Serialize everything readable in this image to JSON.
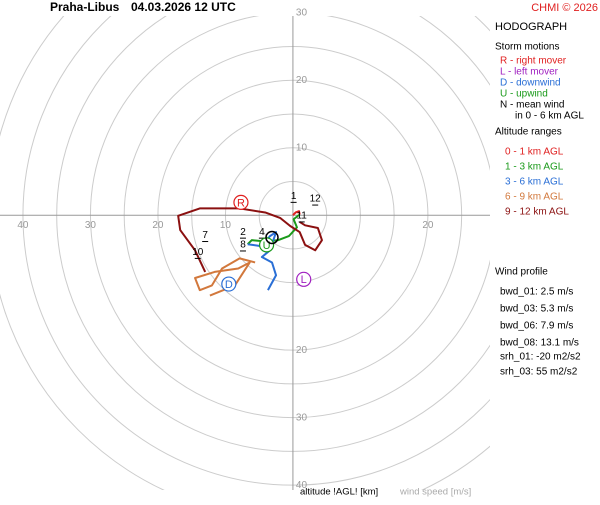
{
  "chart_data": {
    "type": "hodograph",
    "station": "Praha-Libus",
    "time": "04.03.2026 12 UTC",
    "copyright": "CHMI © 2026",
    "title": "HODOGRAPH",
    "x_axis_label": "altitude !AGL! [km]",
    "wind_label": "wind speed [m/s]",
    "xlim": [
      -43.4,
      29.2
    ],
    "ylim": [
      -40.7,
      29.5
    ],
    "rticks": [
      5,
      10,
      15,
      20,
      25,
      30,
      35,
      40,
      45
    ],
    "xticks": [
      {
        "value": -40,
        "label": "40"
      },
      {
        "value": -30,
        "label": "30"
      },
      {
        "value": -20,
        "label": "20"
      },
      {
        "value": -10,
        "label": "10"
      },
      20
    ],
    "yticks": [
      10,
      20,
      30,
      {
        "value": -10,
        "label": "10"
      },
      {
        "value": -20,
        "label": "20"
      },
      {
        "value": -30,
        "label": "30"
      },
      {
        "value": -40,
        "label": "40"
      }
    ],
    "storm_motions_title": "Storm motions",
    "storm_motions": [
      {
        "letter": "R",
        "text": "R - right mover",
        "color": "#e02020",
        "u": -7.7,
        "v": 1.9
      },
      {
        "letter": "L",
        "text": "L - left mover",
        "color": "#a020c0",
        "u": 1.6,
        "v": -9.5
      },
      {
        "letter": "D",
        "text": "D - downwind",
        "color": "#2a6fd6",
        "u": -9.5,
        "v": -10.2
      },
      {
        "letter": "U",
        "text": "U - upwind",
        "color": "#1a9a1a",
        "u": -3.9,
        "v": -4.4
      }
    ],
    "mean_wind": {
      "text": "N - mean wind",
      "text2": "in 0 - 6 km AGL",
      "color": "#000000",
      "u": -3.1,
      "v": -3.3
    },
    "altitude_title": "Altitude ranges",
    "traces": [
      {
        "name": "0 - 1 km AGL",
        "color": "#e02020",
        "u": [
          0,
          0.4,
          0.9,
          1.0
        ],
        "v": [
          0,
          0.4,
          0.6,
          0.1
        ]
      },
      {
        "name": "1 - 3 km AGL",
        "color": "#1a9a1a",
        "u": [
          1.0,
          0.1,
          0.6,
          -0.6,
          -2.2,
          -4.0,
          -6.1,
          -6.7
        ],
        "v": [
          0.1,
          -0.6,
          -1.8,
          -3.1,
          -3.7,
          -3.9,
          -3.7,
          -4.3
        ]
      },
      {
        "name": "3 - 6 km AGL",
        "color": "#2a6fd6",
        "u": [
          -6.7,
          -4.6,
          -3.4,
          -2.5,
          -3.4,
          -4.6,
          -3.1,
          -2.5,
          -3.7
        ],
        "v": [
          -4.3,
          -4.6,
          -3.1,
          -2.5,
          -5.2,
          -6.2,
          -7.0,
          -8.9,
          -11.1
        ]
      },
      {
        "name": "6 - 9 km AGL",
        "color": "#d2783c",
        "u": [
          -5.6,
          -7.9,
          -10.5,
          -12.0,
          -13.8,
          -14.5,
          -11.6,
          -8.1,
          -6.4,
          -8.6,
          -12.3
        ],
        "v": [
          -7.0,
          -6.4,
          -7.9,
          -10.4,
          -11.1,
          -9.3,
          -8.4,
          -7.9,
          -7.0,
          -10.4,
          -11.9
        ]
      },
      {
        "name": "9 - 12 km AGL",
        "color": "#8b1010",
        "u": [
          -13.0,
          -14.5,
          -16.7,
          -17.0,
          -13.8,
          -7.9,
          -4.1,
          -1.9,
          -0.4,
          1.0,
          1.8,
          3.3,
          4.3,
          3.7,
          1.8,
          1.0
        ],
        "v": [
          -8.4,
          -5.2,
          -2.2,
          -0.1,
          1.0,
          1.0,
          0.4,
          -0.4,
          -1.6,
          -2.5,
          -4.4,
          -5.2,
          -3.7,
          -1.9,
          -1.5,
          -1.0
        ]
      }
    ],
    "height_labels": [
      {
        "label": "1",
        "u": 0.1,
        "v": 1.9
      },
      {
        "label": "2",
        "u": -7.4,
        "v": -3.4
      },
      {
        "label": "4",
        "u": -4.6,
        "v": -3.4
      },
      {
        "label": "7",
        "u": -13.0,
        "v": -3.9
      },
      {
        "label": "8",
        "u": -7.4,
        "v": -5.3
      },
      {
        "label": "10",
        "u": -14.1,
        "v": -6.4
      },
      {
        "label": "11",
        "u": 1.3,
        "v": -1.0
      },
      {
        "label": "12",
        "u": 3.3,
        "v": 1.5
      }
    ],
    "wind_profile_title": "Wind profile",
    "wind_profile": [
      "bwd_01: 2.5 m/s",
      "bwd_03: 5.3 m/s",
      "bwd_06: 7.9 m/s",
      "bwd_08: 13.1 m/s"
    ],
    "helicity": [
      "srh_01: -20 m2/s2",
      "srh_03: 55 m2/s2"
    ]
  }
}
